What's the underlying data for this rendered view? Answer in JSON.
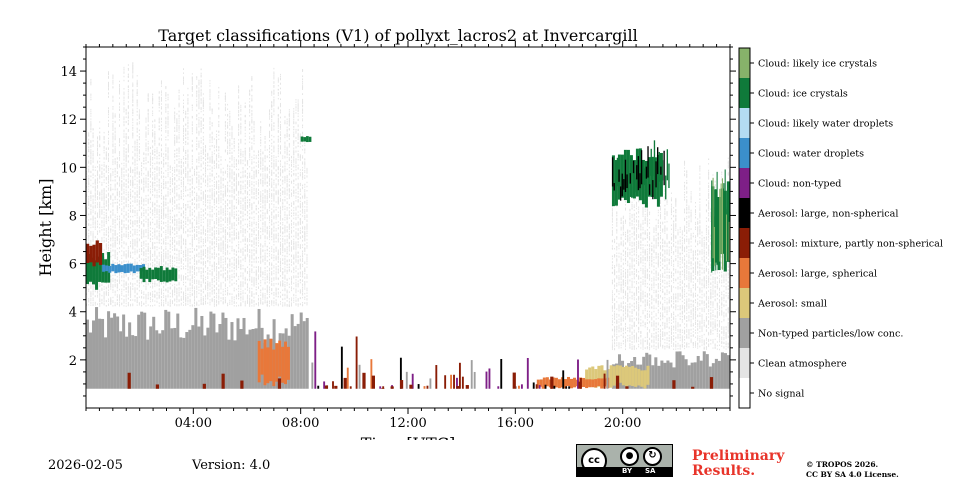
{
  "chart_data": {
    "type": "heatmap",
    "title": "Target classifications (V1) of pollyxt_lacros2 at Invercargill",
    "xlabel": "Time [UTC]",
    "ylabel": "Height [km]",
    "xlim": [
      0,
      24
    ],
    "ylim": [
      0,
      15
    ],
    "x_ticks": [
      4,
      8,
      12,
      16,
      20
    ],
    "x_tick_labels": [
      "04:00",
      "08:00",
      "12:00",
      "16:00",
      "20:00"
    ],
    "y_ticks": [
      2,
      4,
      6,
      8,
      10,
      12,
      14
    ],
    "y_tick_labels": [
      "2",
      "4",
      "6",
      "8",
      "10",
      "12",
      "14"
    ],
    "classes": [
      {
        "label": "Cloud: likely ice crystals",
        "color": "#87b26a"
      },
      {
        "label": "Cloud: ice crystals",
        "color": "#0f7a3a"
      },
      {
        "label": "Cloud: likely water droplets",
        "color": "#b4dcf3"
      },
      {
        "label": "Cloud: water droplets",
        "color": "#3b8fcb"
      },
      {
        "label": "Cloud: non-typed",
        "color": "#7e1f87"
      },
      {
        "label": "Aerosol: large, non-spherical",
        "color": "#000000"
      },
      {
        "label": "Aerosol: mixture, partly non-spherical",
        "color": "#8a1d06"
      },
      {
        "label": "Aerosol: large, spherical",
        "color": "#e8783a"
      },
      {
        "label": "Aerosol: small",
        "color": "#dcc87a"
      },
      {
        "label": "Non-typed particles/low conc.",
        "color": "#a0a0a0"
      },
      {
        "label": "Clean atmosphere",
        "color": "#e4e4e4"
      },
      {
        "label": "No signal",
        "color": "#ffffff"
      }
    ],
    "features": [
      {
        "class": "Non-typed particles/low conc.",
        "t0": 0,
        "t1": 8.3,
        "h0": 0.8,
        "h1": 4.2
      },
      {
        "class": "Clean atmosphere",
        "t0": 0,
        "t1": 8.3,
        "h0": 4.2,
        "h1": 14.5
      },
      {
        "class": "Cloud: ice crystals",
        "t0": 0,
        "t1": 0.9,
        "h0": 4.9,
        "h1": 6.5
      },
      {
        "class": "Aerosol: mixture, partly non-spherical",
        "t0": 0,
        "t1": 0.6,
        "h0": 5.8,
        "h1": 7.0
      },
      {
        "class": "Cloud: water droplets",
        "t0": 0.6,
        "t1": 2.2,
        "h0": 5.6,
        "h1": 6.0
      },
      {
        "class": "Cloud: ice crystals",
        "t0": 2.0,
        "t1": 3.4,
        "h0": 5.2,
        "h1": 5.9
      },
      {
        "class": "Aerosol: large, spherical",
        "t0": 6.4,
        "t1": 7.6,
        "h0": 0.9,
        "h1": 2.9
      },
      {
        "class": "Cloud: ice crystals",
        "t0": 8.0,
        "t1": 8.4,
        "h0": 11.0,
        "h1": 11.3
      },
      {
        "class": "Non-typed particles/low conc.",
        "t0": 19.6,
        "t1": 24,
        "h0": 0.8,
        "h1": 2.4
      },
      {
        "class": "Clean atmosphere",
        "t0": 19.6,
        "t1": 24,
        "h0": 2.4,
        "h1": 10.5
      },
      {
        "class": "Aerosol: small",
        "t0": 18.6,
        "t1": 21.0,
        "h0": 0.8,
        "h1": 1.8
      },
      {
        "class": "Aerosol: large, spherical",
        "t0": 16.8,
        "t1": 19.5,
        "h0": 0.8,
        "h1": 1.3
      },
      {
        "class": "Cloud: ice crystals",
        "t0": 19.6,
        "t1": 21.5,
        "h0": 8.3,
        "h1": 10.8
      },
      {
        "class": "Cloud: likely ice crystals",
        "t0": 23.3,
        "t1": 24,
        "h0": 6.0,
        "h1": 8.5
      },
      {
        "class": "Cloud: ice crystals",
        "t0": 23.3,
        "t1": 24,
        "h0": 5.5,
        "h1": 9.5
      }
    ]
  },
  "footer": {
    "date": "2026-02-05",
    "version": "Version: 4.0",
    "license_badge": {
      "cc": "cc",
      "by": "BY",
      "sa": "SA"
    },
    "preliminary_line1": "Preliminary",
    "preliminary_line2": "Results.",
    "copyright_line1": "© TROPOS 2026.",
    "copyright_line2": "CC BY SA 4.0 License."
  }
}
